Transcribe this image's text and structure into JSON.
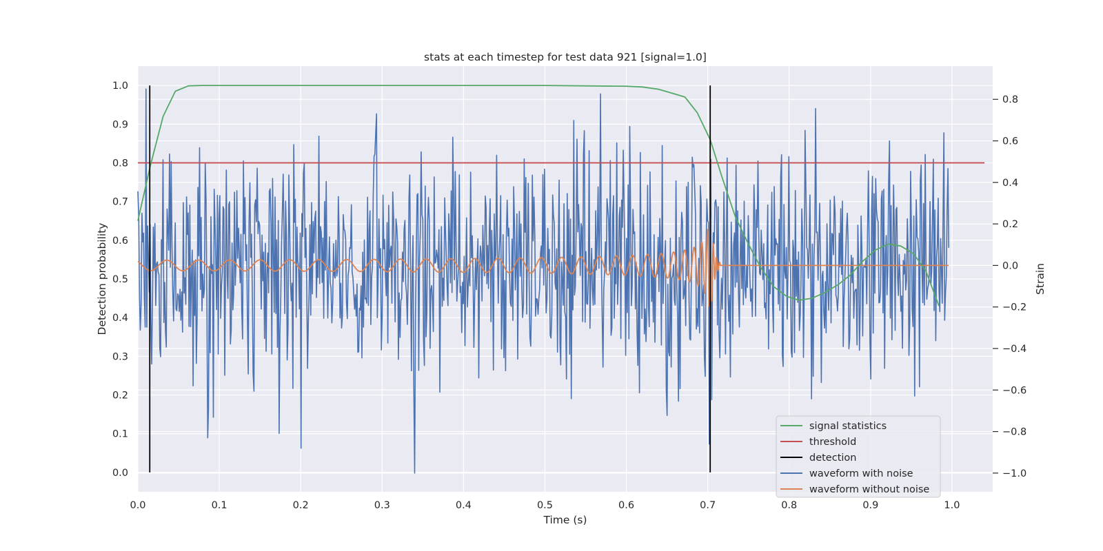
{
  "chart_data": {
    "type": "line",
    "title": "stats at each timestep for test data 921 [signal=1.0]",
    "xlabel": "Time (s)",
    "ylabel_left": "Detection probability",
    "ylabel_right": "Strain",
    "xlim": [
      0.0,
      1.05
    ],
    "ylim_left": [
      -0.05,
      1.05
    ],
    "ylim_right": [
      -1.09,
      0.96
    ],
    "x_ticks": [
      "0.0",
      "0.1",
      "0.2",
      "0.3",
      "0.4",
      "0.5",
      "0.6",
      "0.7",
      "0.8",
      "0.9",
      "1.0"
    ],
    "y_ticks_left": [
      "0.0",
      "0.1",
      "0.2",
      "0.3",
      "0.4",
      "0.5",
      "0.6",
      "0.7",
      "0.8",
      "0.9",
      "1.0"
    ],
    "y_ticks_right": [
      "−1.0",
      "−0.8",
      "−0.6",
      "−0.4",
      "−0.2",
      "0.0",
      "0.2",
      "0.4",
      "0.6",
      "0.8"
    ],
    "grid": true,
    "legend_position": "lower-right",
    "colors": {
      "background": "#eaeaf2",
      "grid": "#ffffff",
      "signal_statistics": "#55a868",
      "threshold": "#c44e52",
      "detection": "#000000",
      "waveform_with_noise": "#4c72b0",
      "waveform_without_noise": "#dd8452"
    },
    "series": [
      {
        "name": "signal statistics",
        "axis": "left",
        "x": [
          0.0,
          0.015,
          0.031,
          0.046,
          0.062,
          0.078,
          0.1,
          0.2,
          0.3,
          0.4,
          0.5,
          0.55,
          0.6,
          0.62,
          0.64,
          0.656,
          0.672,
          0.687,
          0.703,
          0.718,
          0.734,
          0.75,
          0.765,
          0.781,
          0.797,
          0.812,
          0.828,
          0.844,
          0.86,
          0.875,
          0.89,
          0.906,
          0.922,
          0.937,
          0.953,
          0.968,
          0.984
        ],
        "values": [
          0.65,
          0.79,
          0.92,
          0.985,
          0.999,
          1.0,
          1.0,
          1.0,
          1.0,
          1.0,
          1.0,
          0.999,
          0.998,
          0.996,
          0.99,
          0.98,
          0.97,
          0.93,
          0.86,
          0.76,
          0.66,
          0.59,
          0.53,
          0.48,
          0.455,
          0.445,
          0.45,
          0.465,
          0.485,
          0.51,
          0.545,
          0.575,
          0.59,
          0.585,
          0.565,
          0.52,
          0.43
        ]
      },
      {
        "name": "threshold",
        "axis": "left",
        "x": [
          0.0,
          1.04
        ],
        "values": [
          0.8,
          0.8
        ]
      },
      {
        "name": "detection",
        "axis": "left",
        "segments": [
          {
            "x": 0.0146,
            "y": [
              0.0,
              1.0
            ]
          },
          {
            "x": 0.703,
            "y": [
              0.0,
              1.0
            ]
          }
        ]
      },
      {
        "name": "waveform with noise",
        "axis": "right",
        "x_start": 0.0,
        "x_end": 0.996,
        "description_amplitude_std": 0.28,
        "peaks": [
          {
            "x": 0.01,
            "value": 0.85
          },
          {
            "x": 0.086,
            "value": -0.83
          },
          {
            "x": 0.2,
            "value": -0.88
          },
          {
            "x": 0.34,
            "value": -1.0
          },
          {
            "x": 0.702,
            "value": -0.86
          },
          {
            "x": 0.293,
            "value": 0.73
          }
        ]
      },
      {
        "name": "waveform without noise",
        "axis": "right",
        "x_start": 0.0,
        "x_end": 0.996,
        "merger_time": 0.703,
        "peak_value": 0.28,
        "early_amplitude": 0.02
      }
    ]
  }
}
